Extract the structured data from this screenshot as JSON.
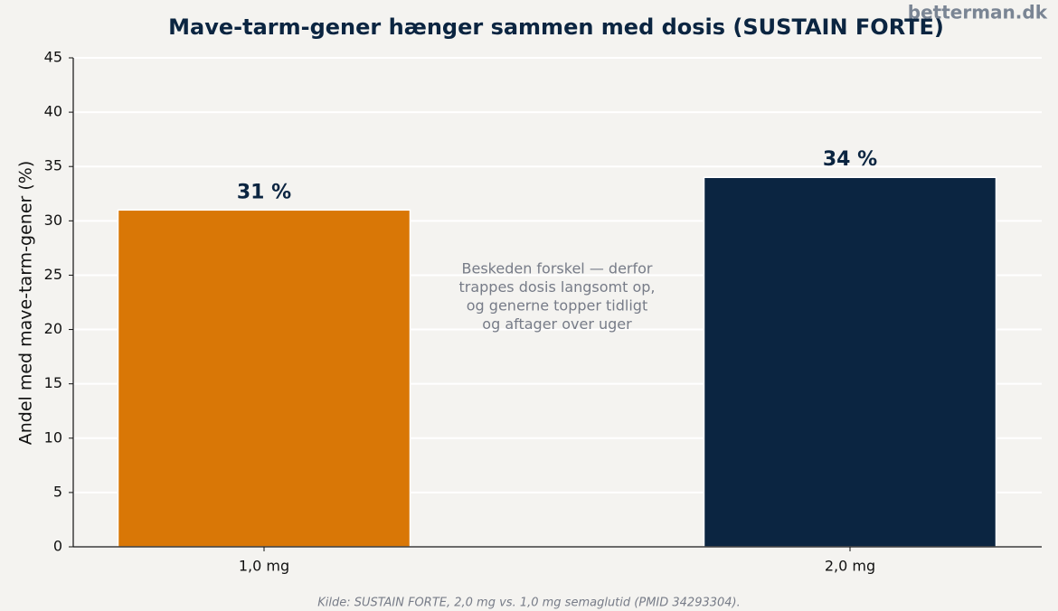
{
  "chart_data": {
    "type": "bar",
    "title": "Mave-tarm-gener hænger sammen med dosis (SUSTAIN FORTE)",
    "watermark": "betterman.dk",
    "ylabel": "Andel med mave-tarm-gener (%)",
    "categories": [
      "1,0 mg",
      "2,0 mg"
    ],
    "values": [
      31,
      34
    ],
    "value_labels": [
      "31 %",
      "34 %"
    ],
    "colors": [
      "#d97706",
      "#0b2541"
    ],
    "ylim": [
      0,
      45
    ],
    "yticks": [
      0,
      5,
      10,
      15,
      20,
      25,
      30,
      35,
      40,
      45
    ],
    "grid": true,
    "annotation": [
      "Beskeden forskel — derfor",
      "trappes dosis langsomt op,",
      "og generne topper tidligt",
      "og aftager over uger"
    ],
    "source": "Kilde: SUSTAIN FORTE, 2,0 mg vs. 1,0 mg semaglutid (PMID 34293304)."
  }
}
